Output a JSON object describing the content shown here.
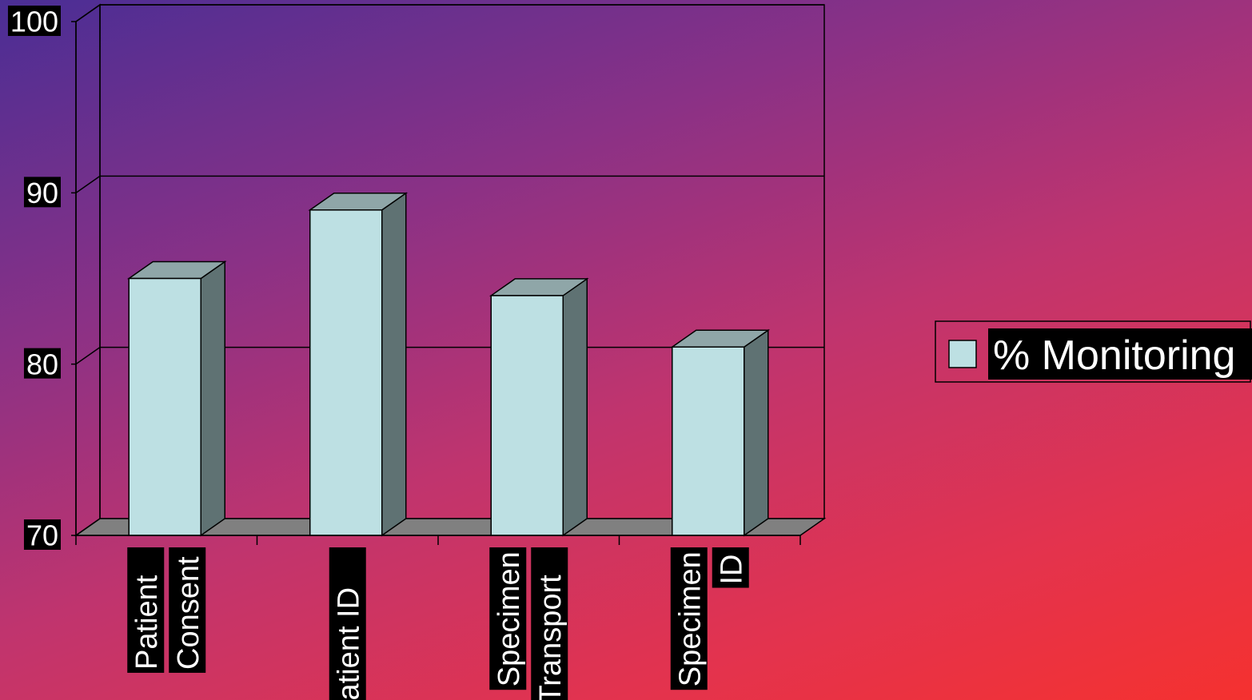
{
  "chart_data": {
    "type": "bar",
    "categories": [
      [
        "Patient",
        "Consent"
      ],
      [
        "Patient ID"
      ],
      [
        "Specimen",
        "Transport"
      ],
      [
        "Specimen",
        "ID"
      ]
    ],
    "series": [
      {
        "name": "% Monitoring",
        "values": [
          85,
          89,
          84,
          81
        ],
        "color": "#bde0e3"
      }
    ],
    "yticks": [
      "70",
      "80",
      "90",
      "100"
    ],
    "ylim": [
      70,
      100
    ],
    "grid": true,
    "legend": "right",
    "three_d": true
  }
}
